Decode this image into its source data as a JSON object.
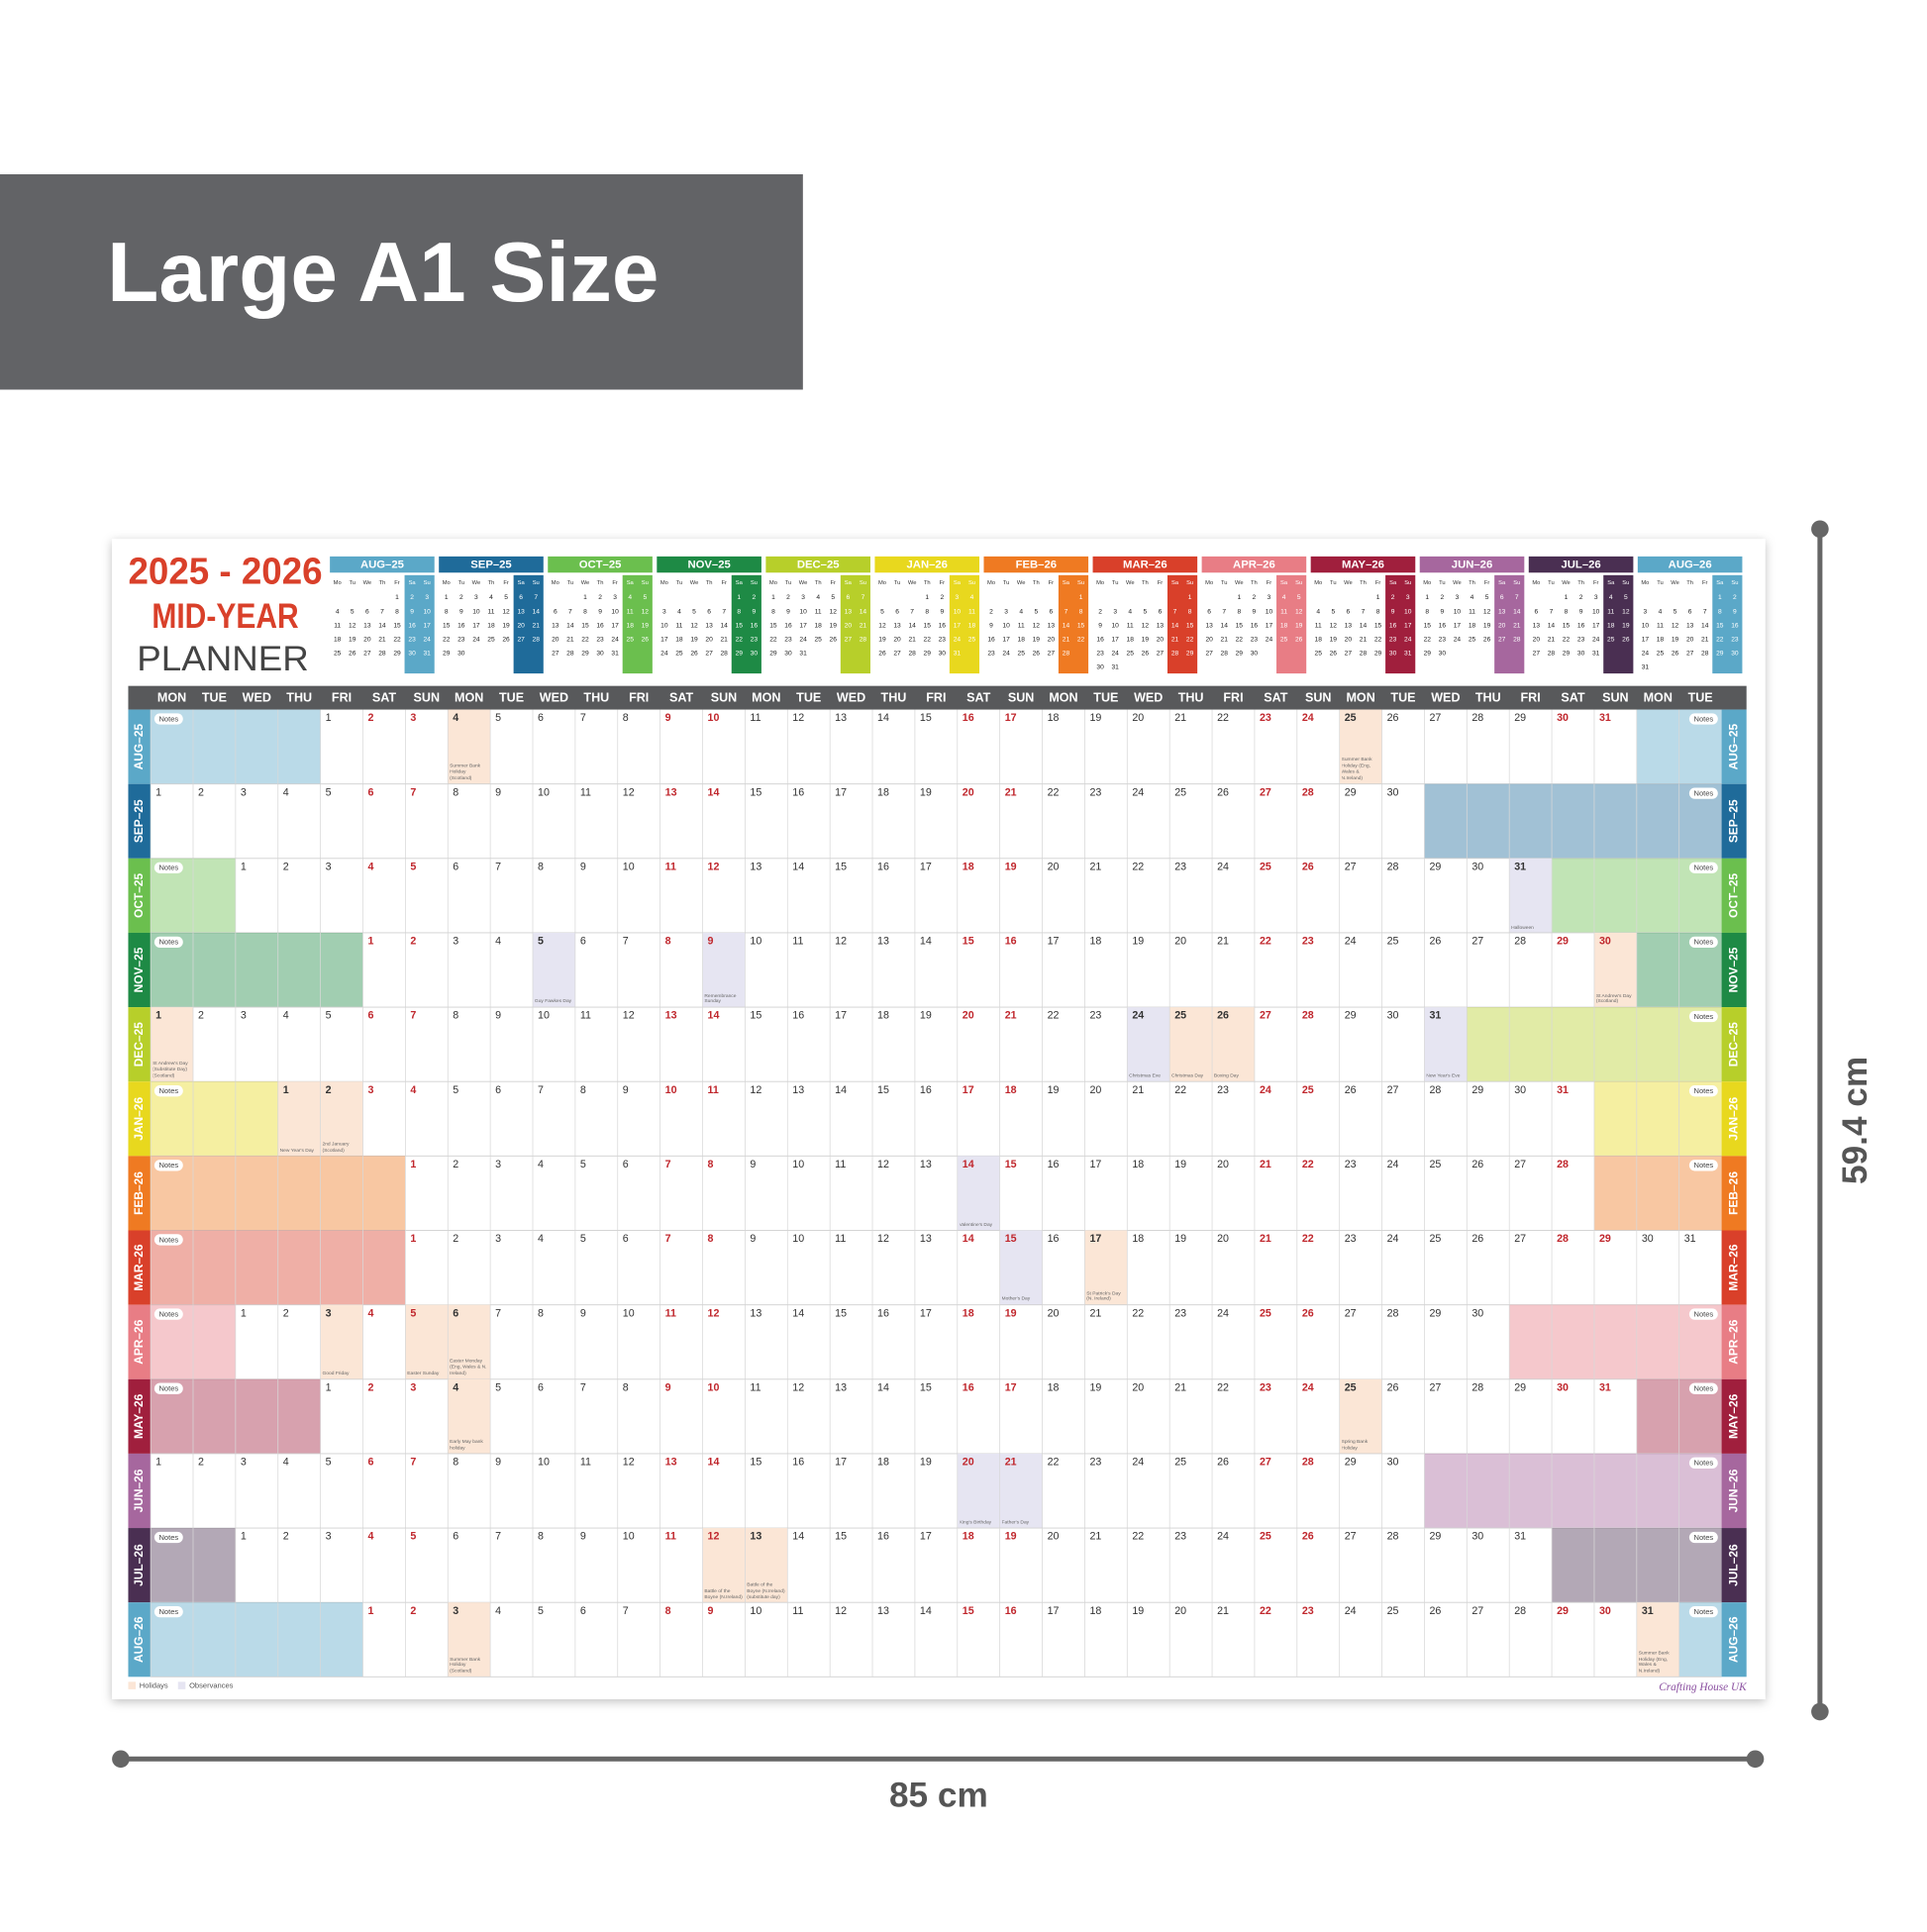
{
  "banner": {
    "title": "Large A1 Size"
  },
  "planner": {
    "title_years": "2025 - 2026",
    "title_line2": "MID-YEAR",
    "title_line3": "PLANNER",
    "mini_weekdays": [
      "Mo",
      "Tu",
      "We",
      "Th",
      "Fr",
      "Sa",
      "Su"
    ],
    "weekdays": [
      "MON",
      "TUE",
      "WED",
      "THU",
      "FRI",
      "SAT",
      "SUN",
      "MON",
      "TUE",
      "WED",
      "THU",
      "FRI",
      "SAT",
      "SUN",
      "MON",
      "TUE",
      "WED",
      "THU",
      "FRI",
      "SAT",
      "SUN",
      "MON",
      "TUE",
      "WED",
      "THU",
      "FRI",
      "SAT",
      "SUN",
      "MON",
      "TUE",
      "WED",
      "THU",
      "FRI",
      "SAT",
      "SUN",
      "MON",
      "TUE"
    ],
    "notes_label": "Notes",
    "legend": [
      {
        "label": "Holidays",
        "color": "#fbe6d6"
      },
      {
        "label": "Observances",
        "color": "#e6e5f2"
      }
    ],
    "signature": "Crafting House UK",
    "months": [
      {
        "label": "AUG–25",
        "color": "#5ba8c8",
        "days": [
          null,
          null,
          null,
          null,
          1,
          2,
          3,
          4,
          5,
          6,
          7,
          8,
          9,
          10,
          11,
          12,
          13,
          14,
          15,
          16,
          17,
          18,
          19,
          20,
          21,
          22,
          23,
          24,
          25,
          26,
          27,
          28,
          29,
          30,
          31,
          null,
          null
        ],
        "events": [
          {
            "day": 4,
            "text": "Summer Bank Holiday (Scotland)",
            "type": "holiday"
          },
          {
            "day": 25,
            "text": "Summer Bank Holiday (Eng, Wales & N.Ireland)",
            "type": "holiday"
          }
        ]
      },
      {
        "label": "SEP–25",
        "color": "#1f6b9a",
        "days": [
          1,
          2,
          3,
          4,
          5,
          6,
          7,
          8,
          9,
          10,
          11,
          12,
          13,
          14,
          15,
          16,
          17,
          18,
          19,
          20,
          21,
          22,
          23,
          24,
          25,
          26,
          27,
          28,
          29,
          30,
          null,
          null,
          null,
          null,
          null,
          null,
          null
        ],
        "events": []
      },
      {
        "label": "OCT–25",
        "color": "#6bbf4e",
        "days": [
          null,
          null,
          1,
          2,
          3,
          4,
          5,
          6,
          7,
          8,
          9,
          10,
          11,
          12,
          13,
          14,
          15,
          16,
          17,
          18,
          19,
          20,
          21,
          22,
          23,
          24,
          25,
          26,
          27,
          28,
          29,
          30,
          31,
          null,
          null,
          null,
          null
        ],
        "events": [
          {
            "day": 31,
            "text": "Halloween",
            "type": "observance"
          }
        ]
      },
      {
        "label": "NOV–25",
        "color": "#1e8a45",
        "days": [
          null,
          null,
          null,
          null,
          null,
          1,
          2,
          3,
          4,
          5,
          6,
          7,
          8,
          9,
          10,
          11,
          12,
          13,
          14,
          15,
          16,
          17,
          18,
          19,
          20,
          21,
          22,
          23,
          24,
          25,
          26,
          27,
          28,
          29,
          30,
          null,
          null
        ],
        "events": [
          {
            "day": 5,
            "text": "Guy Fawkes Day",
            "type": "observance"
          },
          {
            "day": 9,
            "text": "Remembrance Sunday",
            "type": "observance"
          },
          {
            "day": 30,
            "text": "St Andrew's Day (Scotland)",
            "type": "holiday"
          }
        ]
      },
      {
        "label": "DEC–25",
        "color": "#b7cf2a",
        "days": [
          1,
          2,
          3,
          4,
          5,
          6,
          7,
          8,
          9,
          10,
          11,
          12,
          13,
          14,
          15,
          16,
          17,
          18,
          19,
          20,
          21,
          22,
          23,
          24,
          25,
          26,
          27,
          28,
          29,
          30,
          31,
          null,
          null,
          null,
          null,
          null,
          null
        ],
        "events": [
          {
            "day": 1,
            "text": "St Andrew's Day (Substitute Day) (Scotland)",
            "type": "holiday"
          },
          {
            "day": 24,
            "text": "Christmas Eve",
            "type": "observance"
          },
          {
            "day": 25,
            "text": "Christmas Day",
            "type": "holiday"
          },
          {
            "day": 26,
            "text": "Boxing Day",
            "type": "holiday"
          },
          {
            "day": 31,
            "text": "New Year's Eve",
            "type": "observance"
          }
        ]
      },
      {
        "label": "JAN–26",
        "color": "#e8d81e",
        "days": [
          null,
          null,
          null,
          1,
          2,
          3,
          4,
          5,
          6,
          7,
          8,
          9,
          10,
          11,
          12,
          13,
          14,
          15,
          16,
          17,
          18,
          19,
          20,
          21,
          22,
          23,
          24,
          25,
          26,
          27,
          28,
          29,
          30,
          31,
          null,
          null,
          null
        ],
        "events": [
          {
            "day": 1,
            "text": "New Year's Day",
            "type": "holiday"
          },
          {
            "day": 2,
            "text": "2nd January (Scotland)",
            "type": "holiday"
          }
        ]
      },
      {
        "label": "FEB–26",
        "color": "#ef7a22",
        "days": [
          null,
          null,
          null,
          null,
          null,
          null,
          1,
          2,
          3,
          4,
          5,
          6,
          7,
          8,
          9,
          10,
          11,
          12,
          13,
          14,
          15,
          16,
          17,
          18,
          19,
          20,
          21,
          22,
          23,
          24,
          25,
          26,
          27,
          28,
          null,
          null,
          null
        ],
        "events": [
          {
            "day": 14,
            "text": "Valentine's Day",
            "type": "observance"
          }
        ]
      },
      {
        "label": "MAR–26",
        "color": "#d9402a",
        "days": [
          null,
          null,
          null,
          null,
          null,
          null,
          1,
          2,
          3,
          4,
          5,
          6,
          7,
          8,
          9,
          10,
          11,
          12,
          13,
          14,
          15,
          16,
          17,
          18,
          19,
          20,
          21,
          22,
          23,
          24,
          25,
          26,
          27,
          28,
          29,
          30,
          31
        ],
        "events": [
          {
            "day": 15,
            "text": "Mother's Day",
            "type": "observance"
          },
          {
            "day": 17,
            "text": "St Patrick's Day (N. Ireland)",
            "type": "holiday"
          }
        ]
      },
      {
        "label": "APR–26",
        "color": "#e87d85",
        "days": [
          null,
          null,
          1,
          2,
          3,
          4,
          5,
          6,
          7,
          8,
          9,
          10,
          11,
          12,
          13,
          14,
          15,
          16,
          17,
          18,
          19,
          20,
          21,
          22,
          23,
          24,
          25,
          26,
          27,
          28,
          29,
          30,
          null,
          null,
          null,
          null,
          null
        ],
        "events": [
          {
            "day": 3,
            "text": "Good Friday",
            "type": "holiday"
          },
          {
            "day": 5,
            "text": "Easter Sunday",
            "type": "holiday"
          },
          {
            "day": 6,
            "text": "Easter Monday (Eng, Wales & N. Ireland)",
            "type": "holiday"
          }
        ]
      },
      {
        "label": "MAY–26",
        "color": "#a01f3d",
        "days": [
          null,
          null,
          null,
          null,
          1,
          2,
          3,
          4,
          5,
          6,
          7,
          8,
          9,
          10,
          11,
          12,
          13,
          14,
          15,
          16,
          17,
          18,
          19,
          20,
          21,
          22,
          23,
          24,
          25,
          26,
          27,
          28,
          29,
          30,
          31,
          null,
          null
        ],
        "events": [
          {
            "day": 4,
            "text": "Early May bank holiday",
            "type": "holiday"
          },
          {
            "day": 25,
            "text": "Spring Bank Holiday",
            "type": "holiday"
          }
        ]
      },
      {
        "label": "JUN–26",
        "color": "#a6679e",
        "days": [
          1,
          2,
          3,
          4,
          5,
          6,
          7,
          8,
          9,
          10,
          11,
          12,
          13,
          14,
          15,
          16,
          17,
          18,
          19,
          20,
          21,
          22,
          23,
          24,
          25,
          26,
          27,
          28,
          29,
          30,
          null,
          null,
          null,
          null,
          null,
          null,
          null
        ],
        "events": [
          {
            "day": 20,
            "text": "King's Birthday",
            "type": "observance"
          },
          {
            "day": 21,
            "text": "Father's Day",
            "type": "observance"
          }
        ]
      },
      {
        "label": "JUL–26",
        "color": "#4a2f52",
        "days": [
          null,
          null,
          1,
          2,
          3,
          4,
          5,
          6,
          7,
          8,
          9,
          10,
          11,
          12,
          13,
          14,
          15,
          16,
          17,
          18,
          19,
          20,
          21,
          22,
          23,
          24,
          25,
          26,
          27,
          28,
          29,
          30,
          31,
          null,
          null,
          null,
          null
        ],
        "events": [
          {
            "day": 12,
            "text": "Battle of the Boyne (N.Ireland)",
            "type": "holiday"
          },
          {
            "day": 13,
            "text": "Battle of the Boyne (N.Ireland) (substitute day)",
            "type": "holiday"
          }
        ]
      },
      {
        "label": "AUG–26",
        "color": "#5ba8c8",
        "days": [
          null,
          null,
          null,
          null,
          null,
          1,
          2,
          3,
          4,
          5,
          6,
          7,
          8,
          9,
          10,
          11,
          12,
          13,
          14,
          15,
          16,
          17,
          18,
          19,
          20,
          21,
          22,
          23,
          24,
          25,
          26,
          27,
          28,
          29,
          30,
          31,
          null
        ],
        "events": [
          {
            "day": 3,
            "text": "Summer Bank Holiday (Scotland)",
            "type": "holiday"
          },
          {
            "day": 31,
            "text": "Summer Bank Holiday (Eng, Wales & N.Ireland)",
            "type": "holiday"
          }
        ]
      }
    ]
  },
  "dimensions": {
    "height": "59.4 cm",
    "width": "85 cm"
  }
}
